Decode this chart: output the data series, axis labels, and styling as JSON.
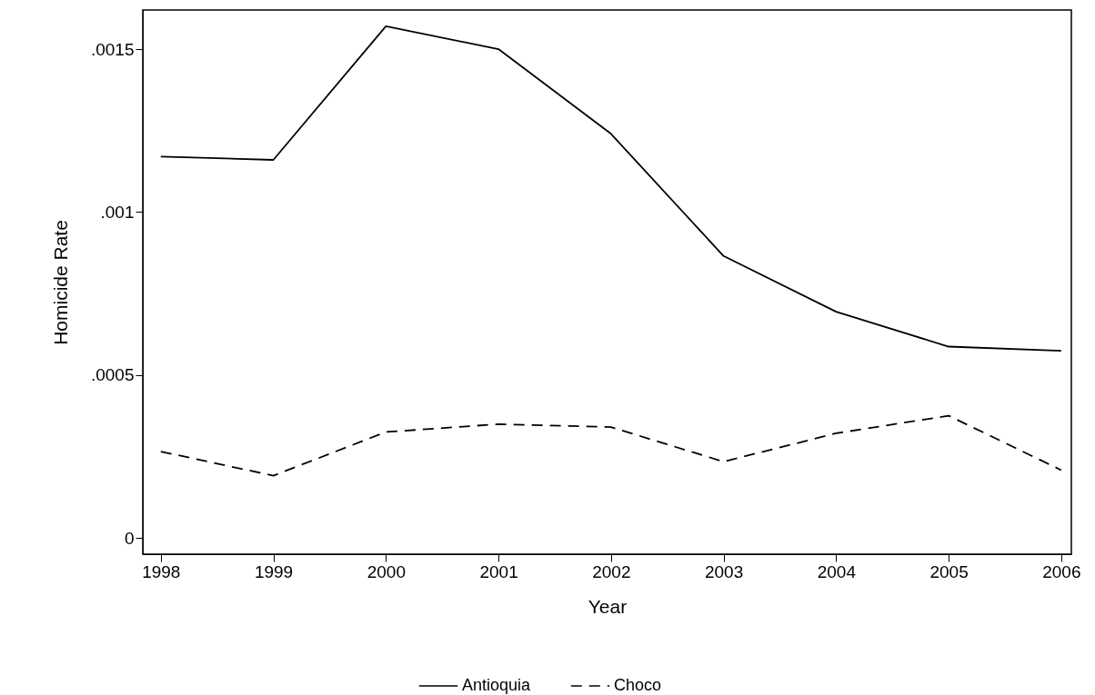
{
  "chart_data": {
    "type": "line",
    "xlabel": "Year",
    "ylabel": "Homicide Rate",
    "x": [
      1998,
      1999,
      2000,
      2001,
      2002,
      2003,
      2004,
      2005,
      2006
    ],
    "series": [
      {
        "name": "Antioquia",
        "color": "#000000",
        "line_style": "solid",
        "values": [
          0.00117,
          0.00116,
          0.00157,
          0.0015,
          0.00124,
          0.000865,
          0.000694,
          0.000587,
          0.000574
        ]
      },
      {
        "name": "Choco",
        "color": "#000000",
        "line_style": "dashed",
        "values": [
          0.000265,
          0.000191,
          0.000325,
          0.000349,
          0.00034,
          0.000234,
          0.000321,
          0.000375,
          0.000208
        ]
      }
    ],
    "xlim": [
      1997.84,
      2006.09
    ],
    "xticks": [
      1998,
      1999,
      2000,
      2001,
      2002,
      2003,
      2004,
      2005,
      2006
    ],
    "ylim": [
      -5e-05,
      0.00162
    ],
    "yticks": [
      0,
      {
        "value": 0.0005,
        "label": ".0005"
      },
      {
        "value": 0.001,
        "label": ".001"
      },
      {
        "value": 0.0015,
        "label": ".0015"
      }
    ],
    "grid": false,
    "legend": "bottom",
    "marker": "none"
  }
}
